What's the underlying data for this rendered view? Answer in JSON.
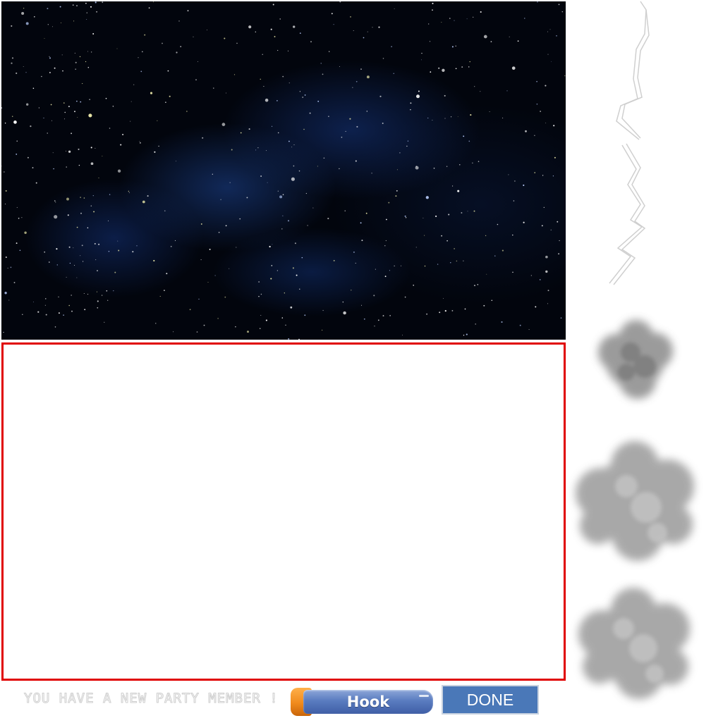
{
  "status": {
    "message": "YOU HAVE A NEW PARTY MEMBER !"
  },
  "buttons": {
    "hook_label": "Hook",
    "done_label": "DONE"
  },
  "colors": {
    "frame_border": "#e00000",
    "done_button": "#4a78b8",
    "hook_cap": "#f08a1c",
    "hook_body": "#5a7cc0",
    "space": "#02050d"
  },
  "sprites": [
    "lightning-bolt-icon",
    "smoke-cloud-small-icon",
    "smoke-cloud-large-icon",
    "smoke-cloud-large-icon"
  ]
}
